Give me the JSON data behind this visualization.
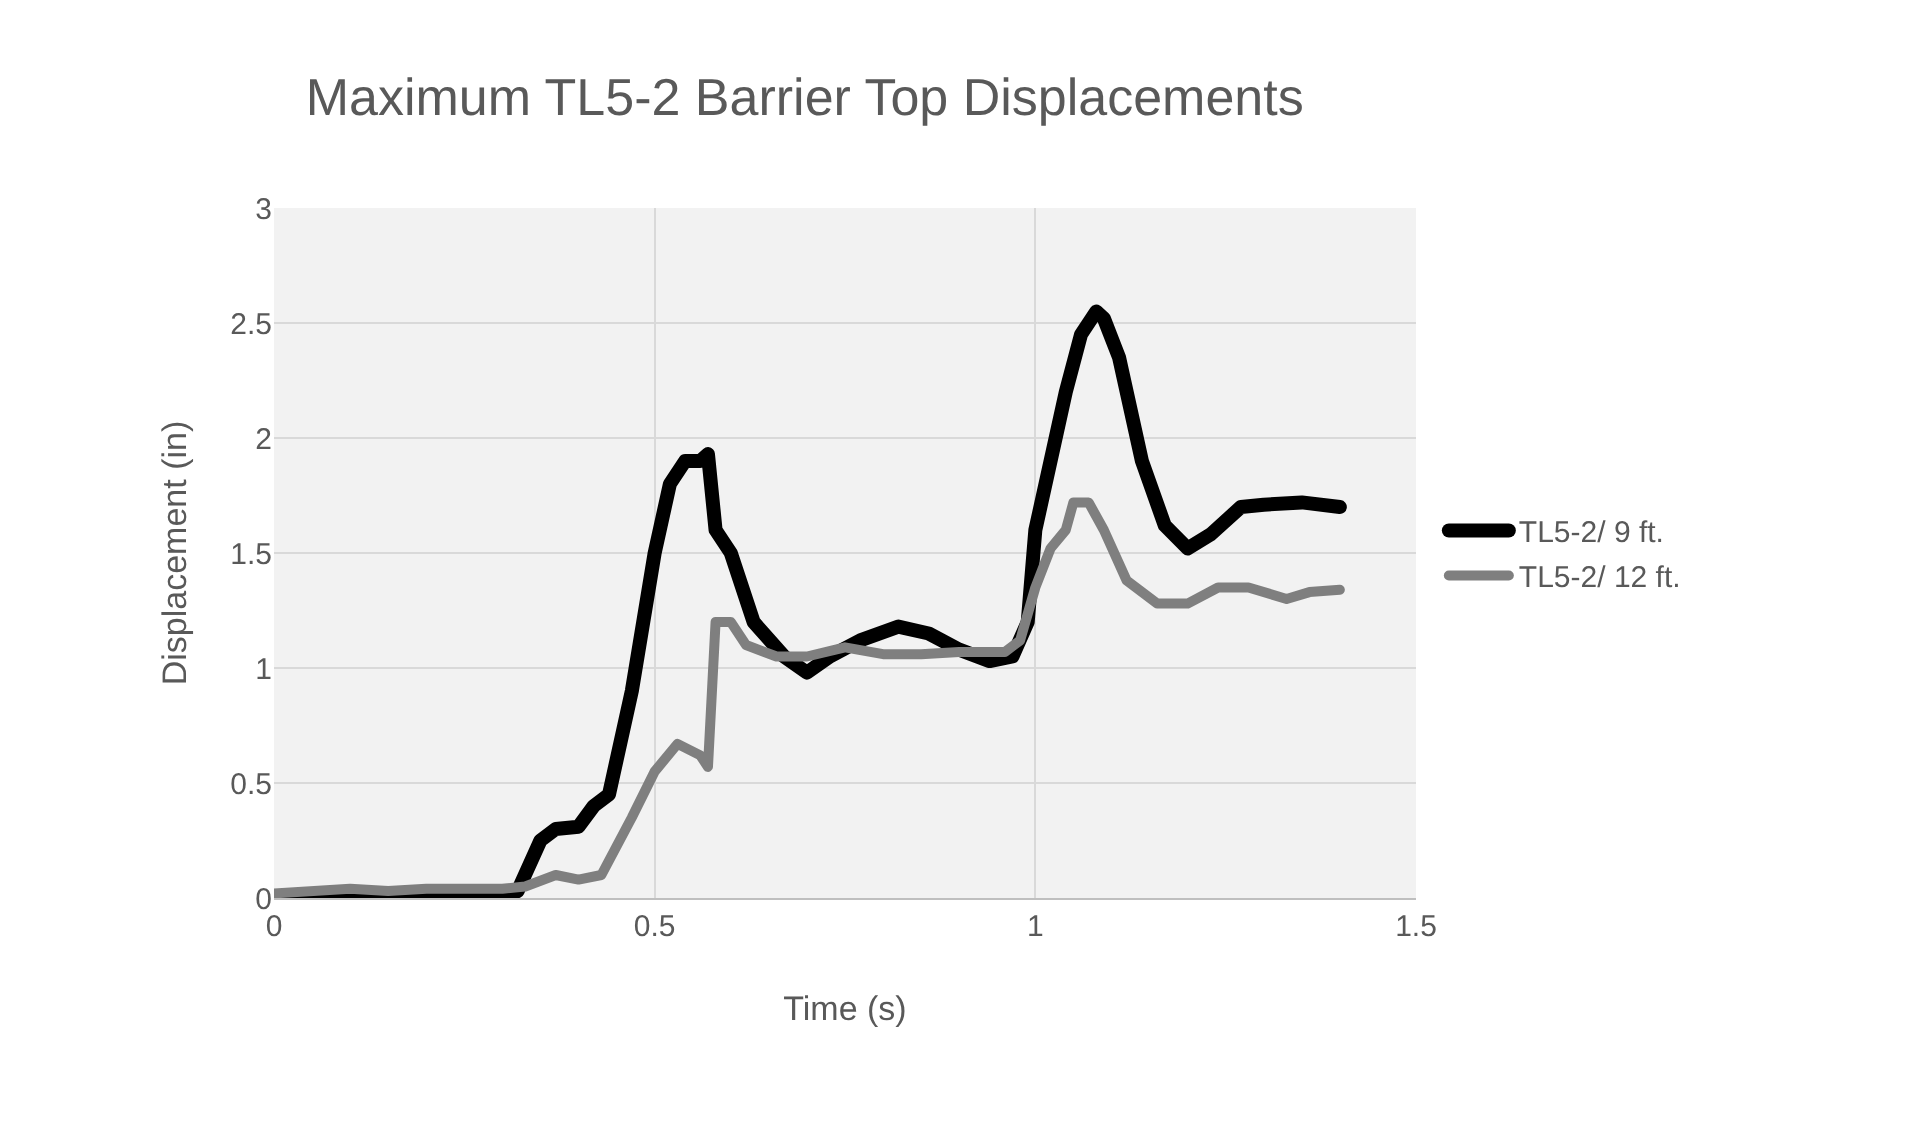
{
  "chart_data": {
    "type": "line",
    "title": "Maximum TL5-2 Barrier Top Displacements",
    "xlabel": "Time (s)",
    "ylabel": "Displacement (in)",
    "xlim": [
      0,
      1.5
    ],
    "xticks": [
      0,
      0.5,
      1,
      1.5
    ],
    "ylim": [
      0,
      3
    ],
    "yticks": [
      0,
      0.5,
      1,
      1.5,
      2,
      2.5,
      3
    ],
    "grid": true,
    "legend": "right",
    "marker": "none",
    "line_style": "solid",
    "series": [
      {
        "name": "TL5-2/ 9 ft.",
        "color": "#000000",
        "x": [
          0,
          0.1,
          0.2,
          0.3,
          0.32,
          0.35,
          0.37,
          0.4,
          0.42,
          0.44,
          0.47,
          0.5,
          0.52,
          0.54,
          0.56,
          0.57,
          0.58,
          0.6,
          0.63,
          0.67,
          0.7,
          0.73,
          0.77,
          0.82,
          0.86,
          0.9,
          0.94,
          0.97,
          0.99,
          1.0,
          1.02,
          1.04,
          1.06,
          1.08,
          1.09,
          1.11,
          1.14,
          1.17,
          1.2,
          1.23,
          1.27,
          1.3,
          1.35,
          1.4
        ],
        "values": [
          0,
          0,
          0,
          0,
          0.03,
          0.25,
          0.3,
          0.31,
          0.4,
          0.45,
          0.9,
          1.5,
          1.8,
          1.9,
          1.9,
          1.93,
          1.6,
          1.5,
          1.2,
          1.05,
          0.98,
          1.05,
          1.12,
          1.18,
          1.15,
          1.08,
          1.03,
          1.05,
          1.2,
          1.6,
          1.9,
          2.2,
          2.45,
          2.55,
          2.52,
          2.35,
          1.9,
          1.62,
          1.52,
          1.58,
          1.7,
          1.71,
          1.72,
          1.7
        ]
      },
      {
        "name": "TL5-2/ 12 ft.",
        "color": "#7f7f7f",
        "x": [
          0,
          0.1,
          0.15,
          0.2,
          0.3,
          0.33,
          0.37,
          0.4,
          0.43,
          0.47,
          0.5,
          0.53,
          0.56,
          0.57,
          0.58,
          0.6,
          0.62,
          0.66,
          0.7,
          0.75,
          0.8,
          0.85,
          0.9,
          0.96,
          0.98,
          1.0,
          1.02,
          1.04,
          1.05,
          1.07,
          1.09,
          1.12,
          1.16,
          1.2,
          1.24,
          1.28,
          1.33,
          1.36,
          1.4
        ],
        "values": [
          0.02,
          0.04,
          0.03,
          0.04,
          0.04,
          0.05,
          0.1,
          0.08,
          0.1,
          0.35,
          0.55,
          0.67,
          0.62,
          0.57,
          1.2,
          1.2,
          1.1,
          1.05,
          1.05,
          1.09,
          1.06,
          1.06,
          1.07,
          1.07,
          1.12,
          1.35,
          1.52,
          1.6,
          1.72,
          1.72,
          1.6,
          1.38,
          1.28,
          1.28,
          1.35,
          1.35,
          1.3,
          1.33,
          1.34
        ]
      }
    ]
  }
}
